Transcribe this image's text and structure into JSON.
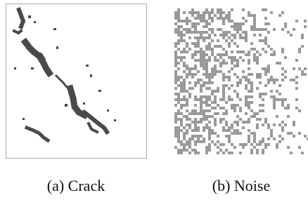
{
  "figure": {
    "panels": [
      {
        "caption": "(a) Crack"
      },
      {
        "caption": "(b) Noise"
      }
    ]
  }
}
